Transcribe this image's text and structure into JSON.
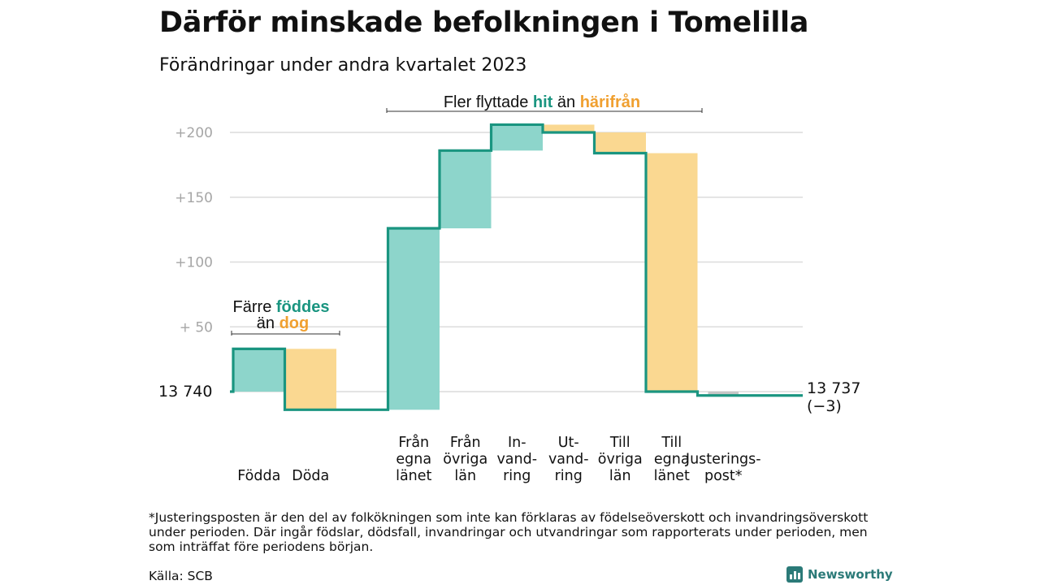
{
  "header": {
    "title": "Därför minskade befolkningen i Tomelilla",
    "subtitle": "Förändringar under andra kvartalet 2023"
  },
  "colors": {
    "up": "#8dd5cb",
    "down": "#fad891",
    "line": "#1a9580",
    "grid": "#dcdcdc",
    "adjust": "#c6c6c6"
  },
  "chart_data": {
    "type": "waterfall",
    "start_label": "13  740",
    "end_label": "13 737",
    "end_delta_label": "(−3)",
    "start_value": 0,
    "ylim": [
      -10,
      205
    ],
    "y_ticks": [
      {
        "value": 50,
        "label": "+  50"
      },
      {
        "value": 100,
        "label": "+100"
      },
      {
        "value": 150,
        "label": "+150"
      },
      {
        "value": 200,
        "label": "+200"
      }
    ],
    "steps": [
      {
        "label": "Födda",
        "change": 33
      },
      {
        "label": "Döda",
        "change": -47
      },
      {
        "label": "",
        "change": 0,
        "gap": true
      },
      {
        "label": "Från egna länet",
        "label_lines": [
          "Från",
          "egna",
          "länet"
        ],
        "change": 140
      },
      {
        "label": "Från övriga län",
        "label_lines": [
          "Från",
          "övriga",
          "län"
        ],
        "change": 60
      },
      {
        "label": "In-vandring",
        "label_lines": [
          "In-",
          "vand-",
          "ring"
        ],
        "change": 20
      },
      {
        "label": "Ut-vandring",
        "label_lines": [
          "Ut-",
          "vand-",
          "ring"
        ],
        "change": -6
      },
      {
        "label": "Till övriga län",
        "label_lines": [
          "Till",
          "övriga",
          "län"
        ],
        "change": -16
      },
      {
        "label": "Till egna länet",
        "label_lines": [
          "Till",
          "egna",
          "länet"
        ],
        "change": -184
      },
      {
        "label": "Justerings-post*",
        "label_lines": [
          "Justerings-",
          "post*"
        ],
        "change": -3,
        "adjustment": true
      }
    ],
    "annotations": {
      "births": {
        "pre": "Färre ",
        "up": "föddes",
        "line2_pre": "än ",
        "down": "dog"
      },
      "migration": {
        "pre": "Fler flyttade ",
        "up": "hit",
        "mid": " än ",
        "down": "härifrån"
      }
    }
  },
  "footnote": "*Justeringsposten är den del av folkökningen som inte kan förklaras av födelseöverskott och invandringsöverskott under perioden. Där ingår födslar, dödsfall, invandringar och utvandringar som rapporterats under perioden, men som inträffat före periodens början.",
  "source": "Källa: SCB",
  "brand": "Newsworthy"
}
